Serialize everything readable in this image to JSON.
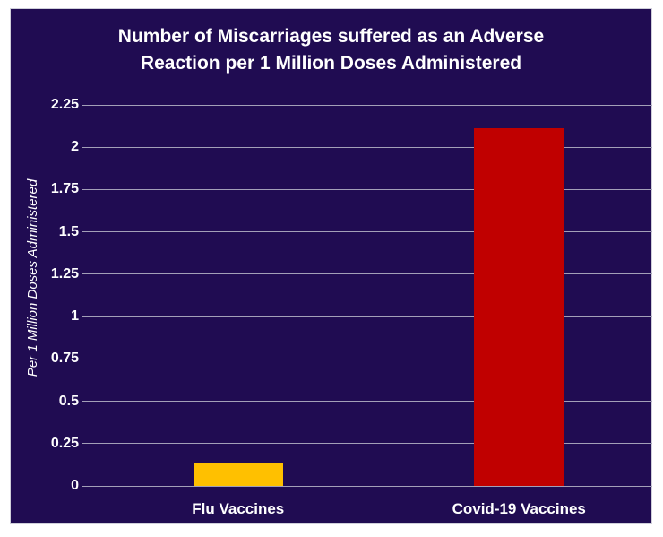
{
  "chart_data": {
    "type": "bar",
    "title": "Number of Miscarriages suffered as an Adverse Reaction per 1 Million Doses Administered",
    "title_lines": [
      "Number of Miscarriages suffered as an Adverse",
      "Reaction per 1 Million Doses Administered"
    ],
    "ylabel": "Per 1 Million Doses Administered",
    "xlabel": "",
    "categories": [
      "Flu Vaccines",
      "Covid-19 Vaccines"
    ],
    "values": [
      0.13,
      2.11
    ],
    "bar_colors": [
      "#FFC000",
      "#C00000"
    ],
    "ylim": [
      0,
      2.25
    ],
    "ytick_values": [
      0,
      0.25,
      0.5,
      0.75,
      1,
      1.25,
      1.5,
      1.75,
      2,
      2.25
    ],
    "ytick_labels": [
      "0",
      "0.25",
      "0.5",
      "0.75",
      "1",
      "1.25",
      "1.5",
      "1.75",
      "2",
      "2.25"
    ],
    "grid": true,
    "legend": "none",
    "colors": {
      "background": "#200C52",
      "page": "#FFFFFF",
      "gridline": "#A3A0B8",
      "text": "#FFFFFF"
    }
  }
}
